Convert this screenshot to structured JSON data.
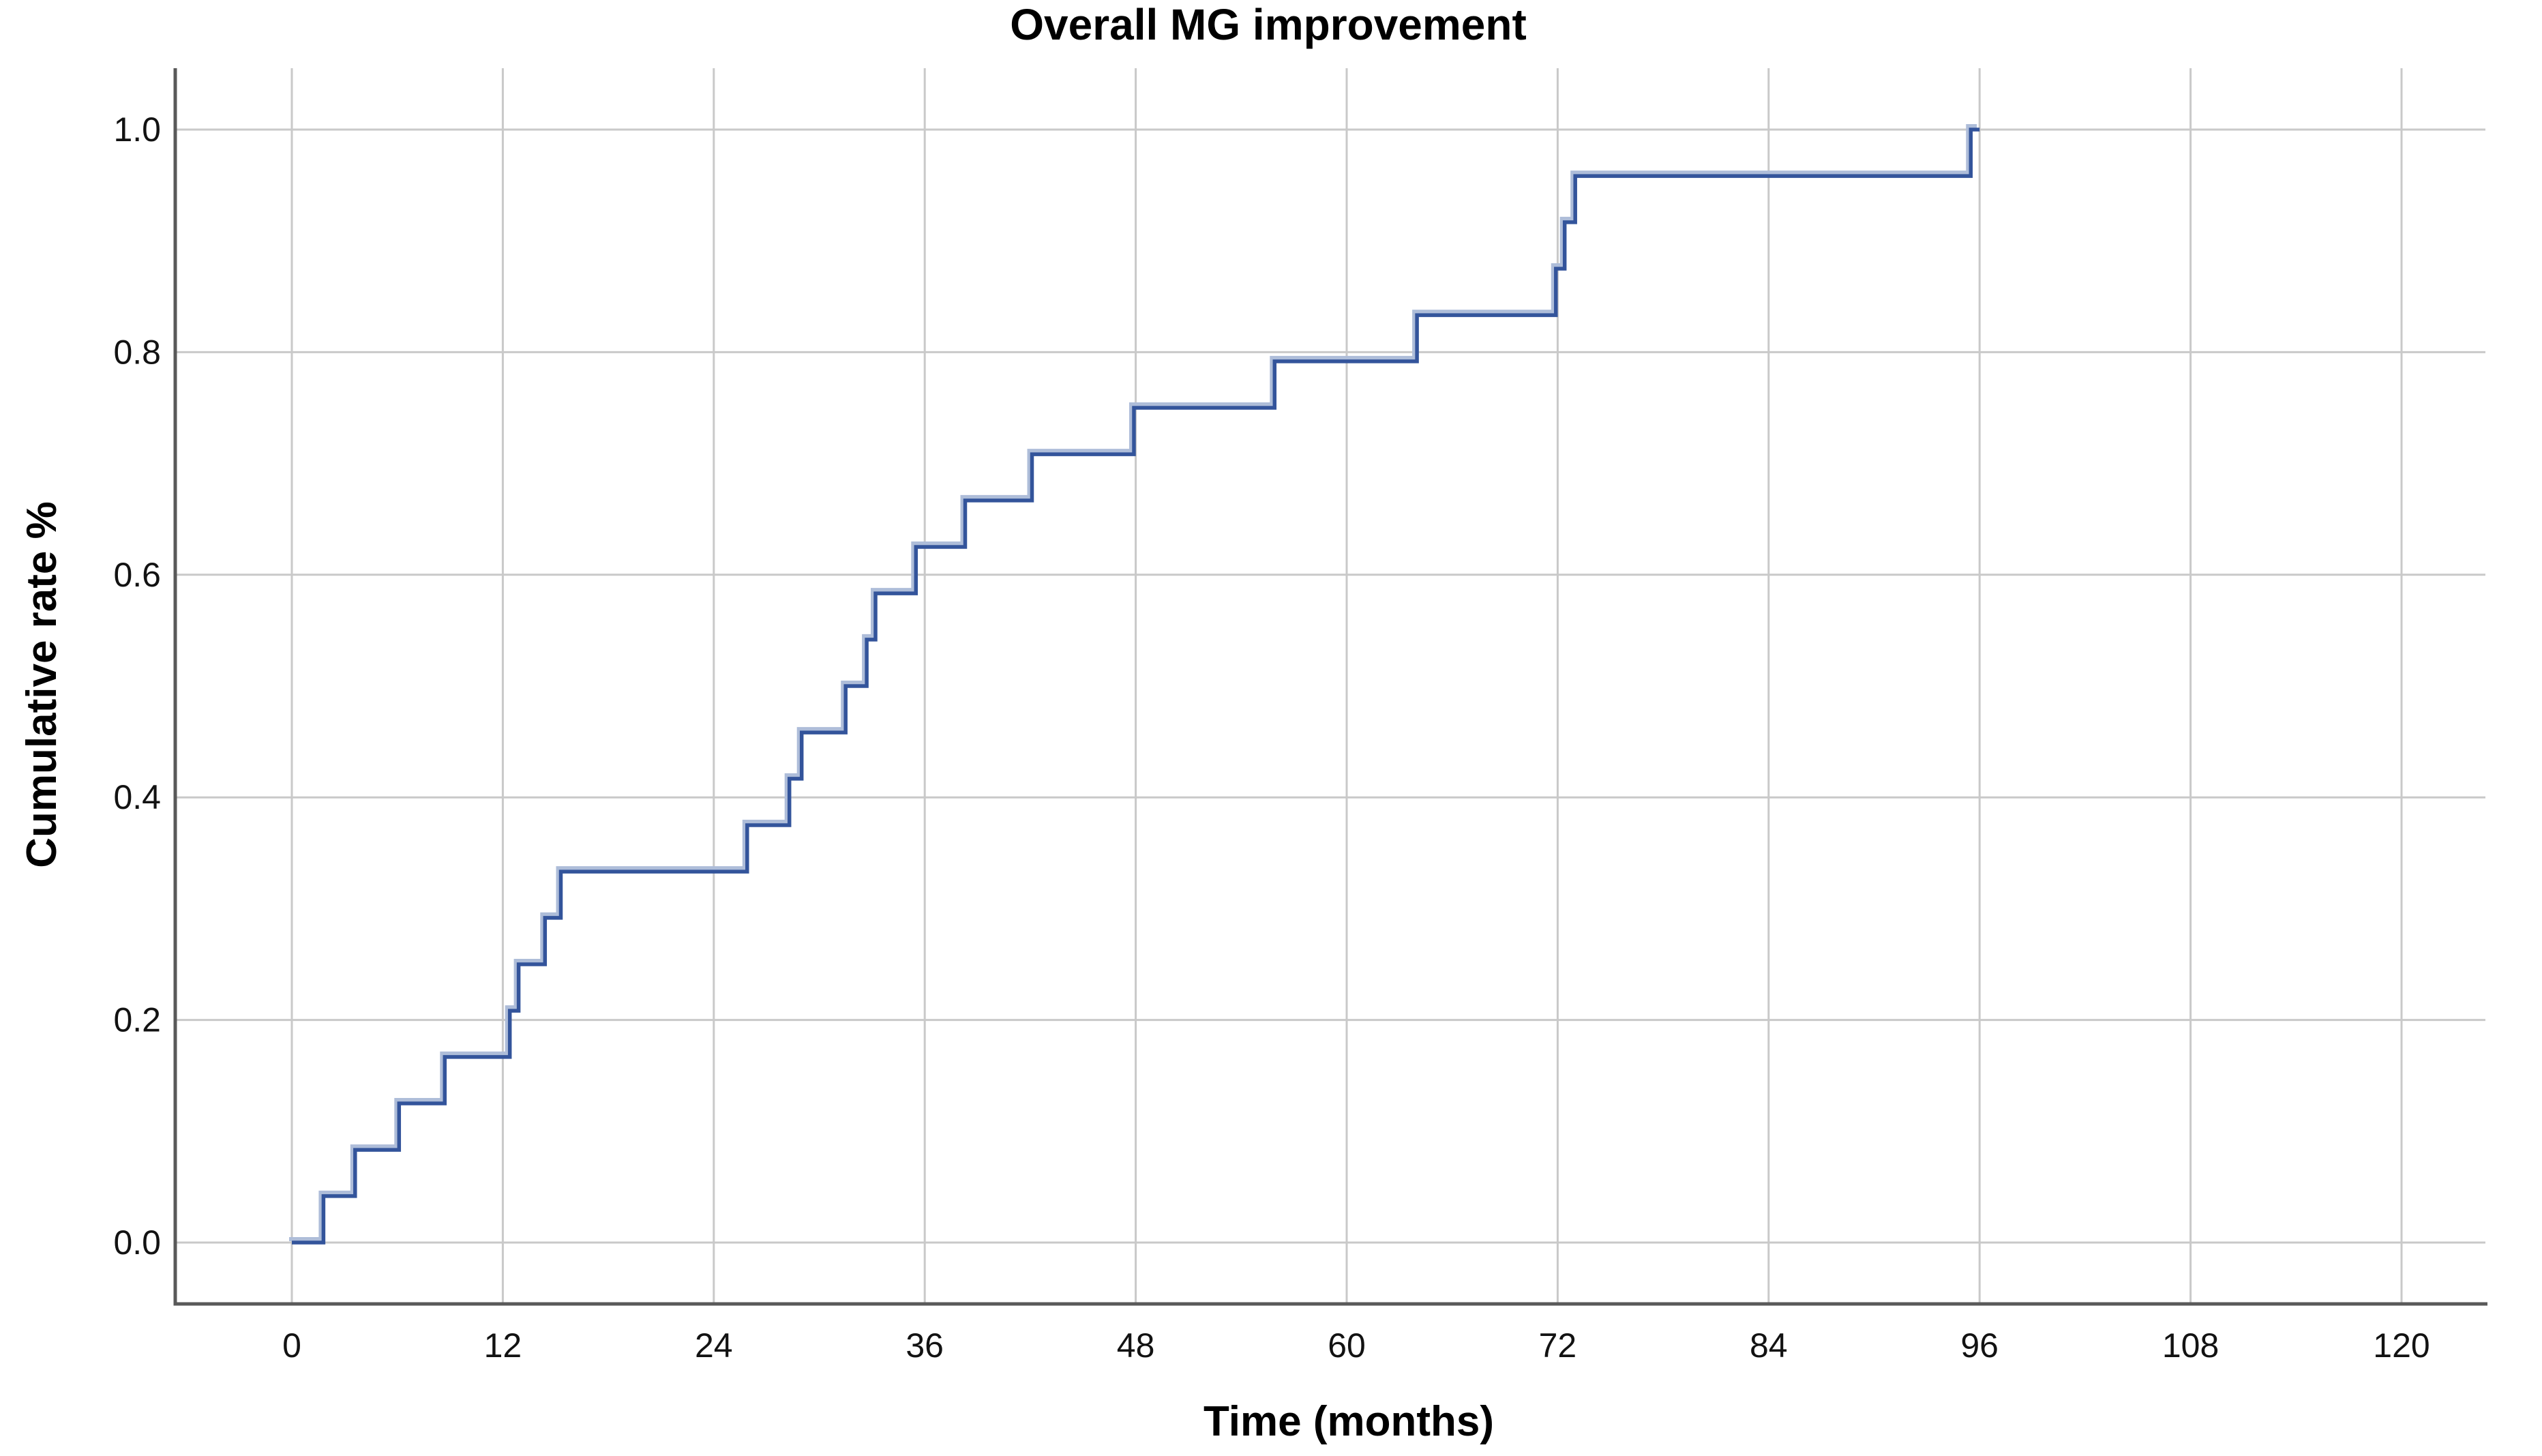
{
  "title": "Overall MG improvement",
  "x_axis": {
    "label": "Time (months)",
    "tick_labels": [
      "0",
      "12",
      "24",
      "36",
      "48",
      "60",
      "72",
      "84",
      "96",
      "108",
      "120"
    ],
    "tick_values": [
      0,
      12,
      24,
      36,
      48,
      60,
      72,
      84,
      96,
      108,
      120
    ]
  },
  "y_axis": {
    "label": "Cumulative rate %",
    "tick_labels": [
      "0.0",
      "0.2",
      "0.4",
      "0.6",
      "0.8",
      "1.0"
    ],
    "tick_values": [
      0.0,
      0.2,
      0.4,
      0.6,
      0.8,
      1.0
    ]
  },
  "chart_data": {
    "type": "line",
    "subtype": "step",
    "title": "Overall MG improvement",
    "xlabel": "Time (months)",
    "ylabel": "Cumulative rate %",
    "xlim": [
      0,
      120
    ],
    "ylim": [
      0.0,
      1.0
    ],
    "grid": true,
    "legend": "none",
    "series_name": "Cumulative rate",
    "start_point": [
      0,
      0.0
    ],
    "curve_end_x": 96,
    "n_events": 24,
    "step_increment": 0.0417,
    "step_points": [
      [
        1.8,
        0.0417
      ],
      [
        3.6,
        0.0833
      ],
      [
        6.1,
        0.125
      ],
      [
        8.7,
        0.1667
      ],
      [
        12.4,
        0.2083
      ],
      [
        12.9,
        0.25
      ],
      [
        14.4,
        0.2917
      ],
      [
        15.3,
        0.3333
      ],
      [
        25.9,
        0.375
      ],
      [
        28.3,
        0.4167
      ],
      [
        29.0,
        0.4583
      ],
      [
        31.5,
        0.5
      ],
      [
        32.7,
        0.5417
      ],
      [
        33.2,
        0.5833
      ],
      [
        35.5,
        0.625
      ],
      [
        38.3,
        0.6667
      ],
      [
        42.1,
        0.7083
      ],
      [
        47.9,
        0.75
      ],
      [
        55.9,
        0.7917
      ],
      [
        64.0,
        0.8333
      ],
      [
        71.9,
        0.875
      ],
      [
        72.4,
        0.9167
      ],
      [
        73.0,
        0.9583
      ],
      [
        95.5,
        1.0
      ]
    ]
  },
  "colors": {
    "line": "#33549B",
    "line_halo": "#AEBDD9",
    "gridline": "#C9C9C9",
    "axis_line": "#595959",
    "text": "#121212",
    "background": "#FFFFFF"
  }
}
